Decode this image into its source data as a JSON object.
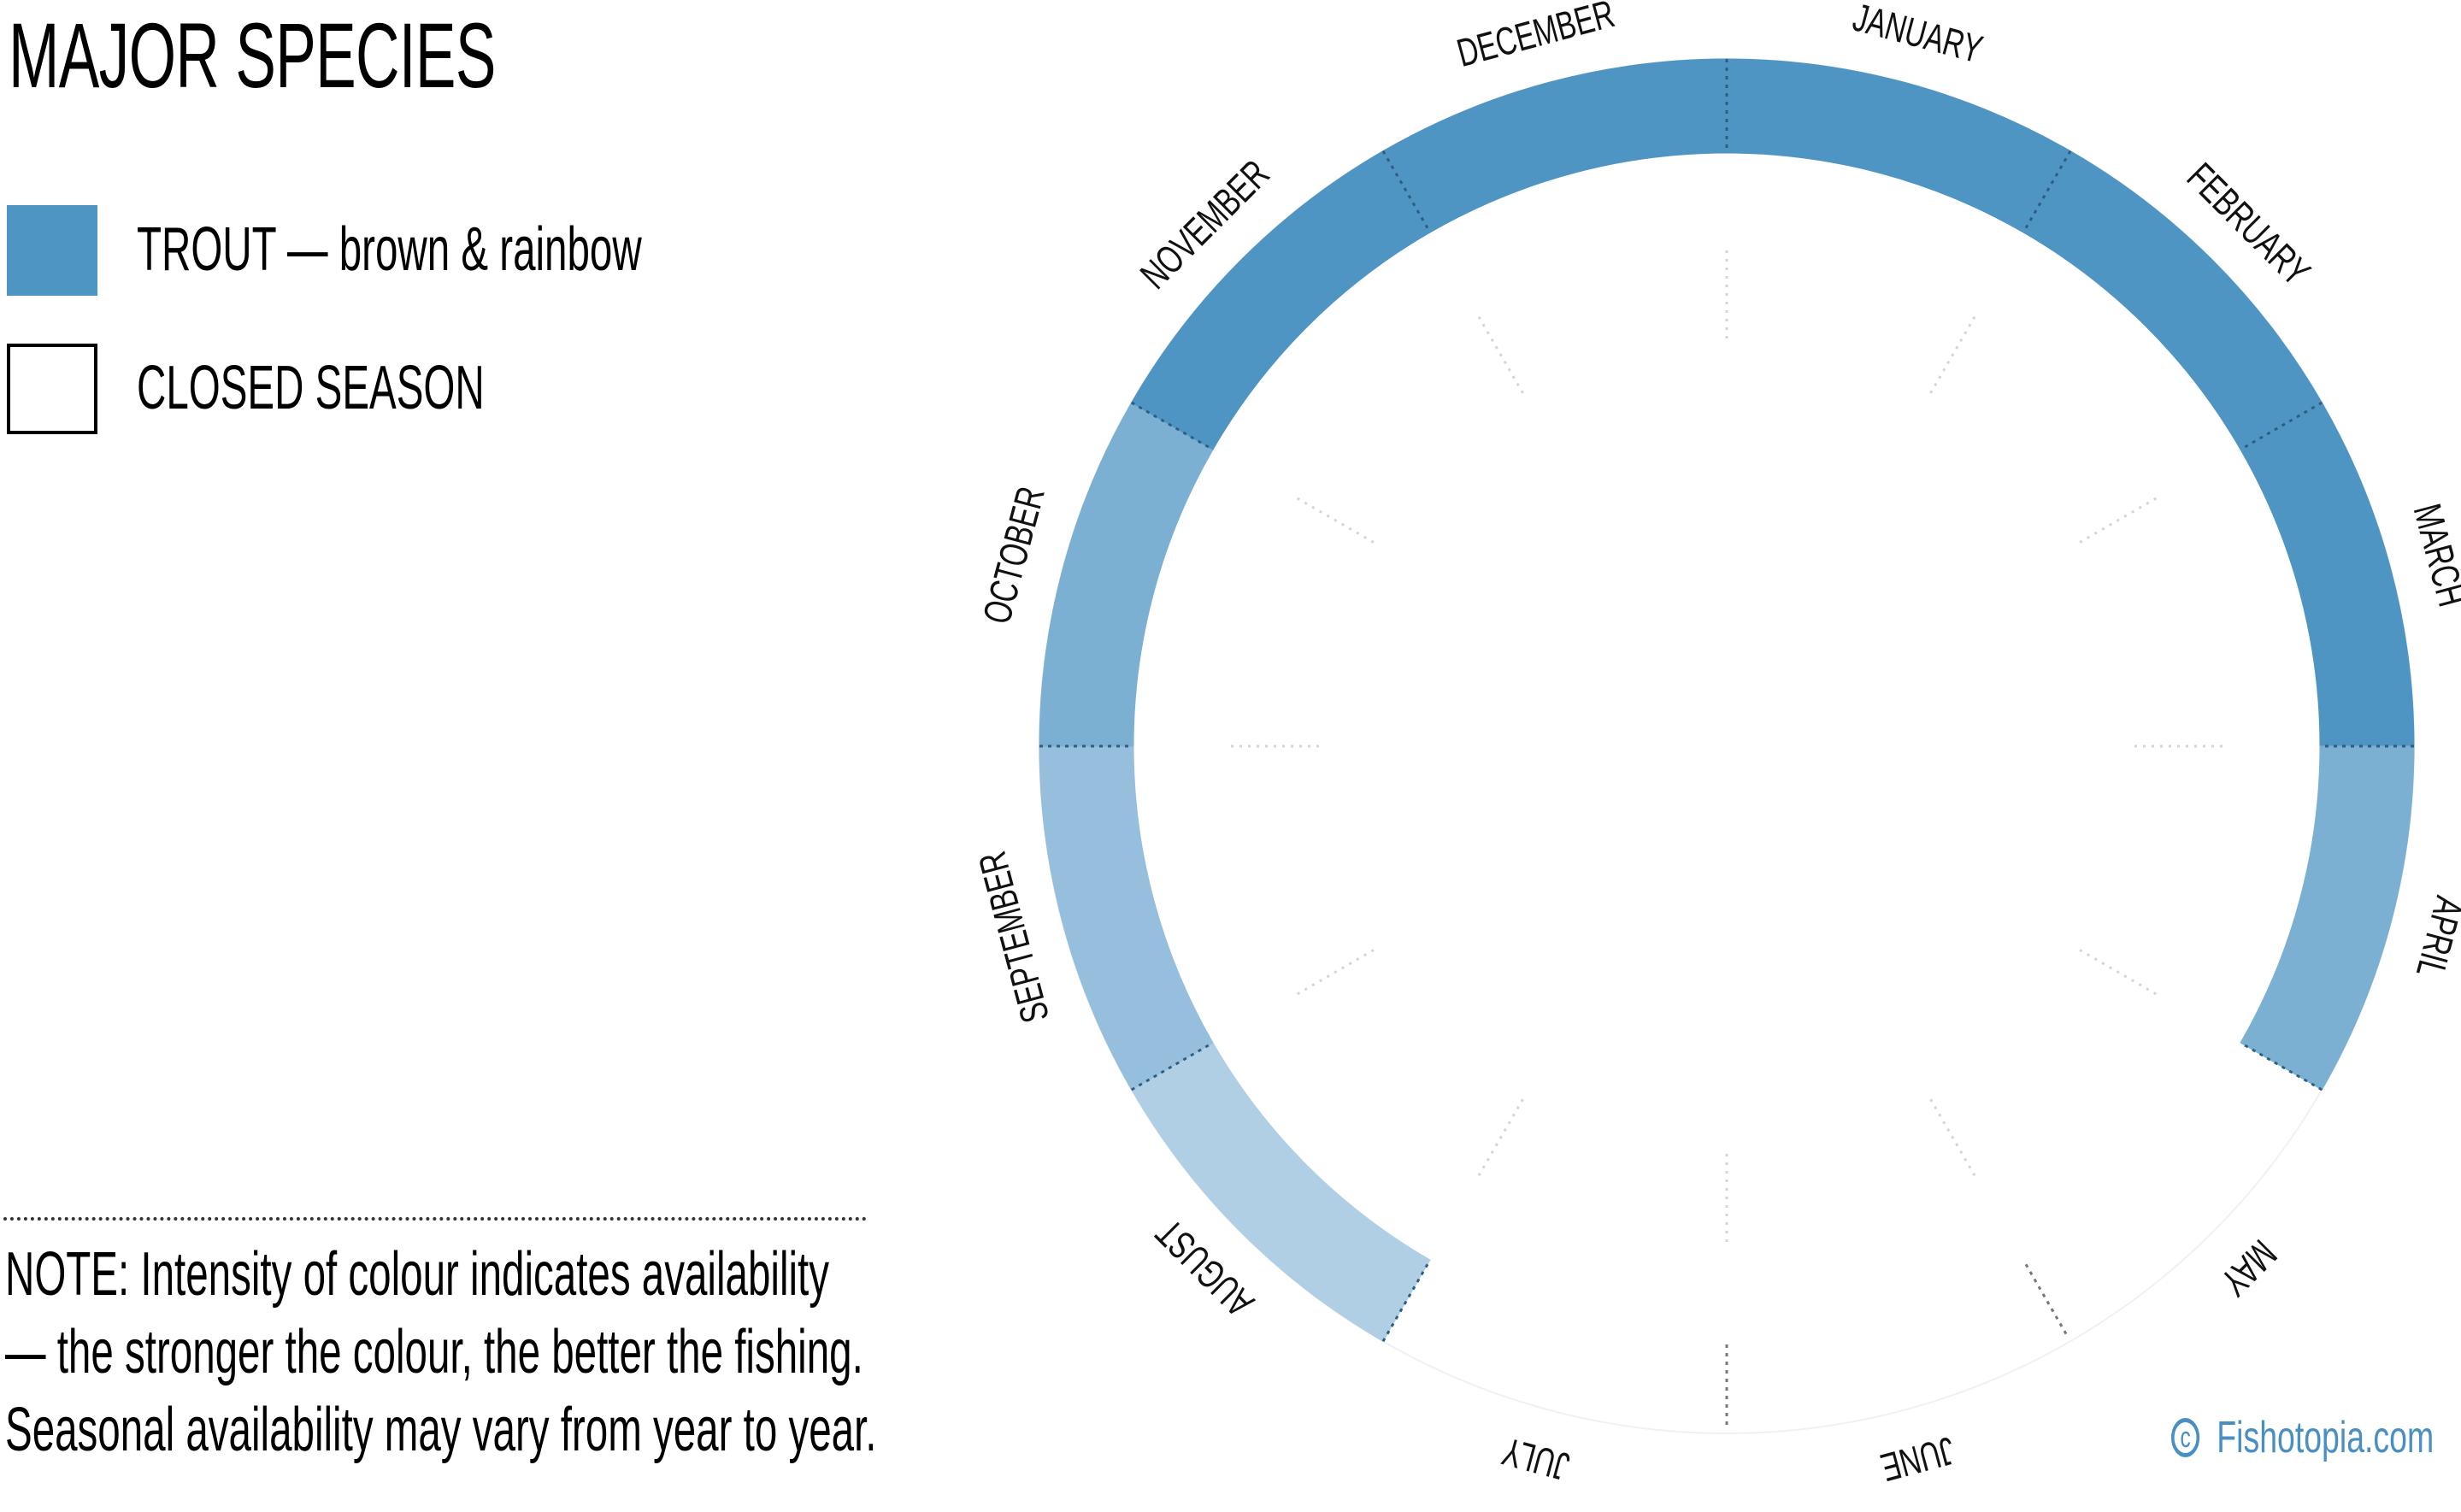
{
  "title": "MAJOR SPECIES",
  "legend": [
    {
      "label": "TROUT — brown & rainbow",
      "color": "#4f95c4",
      "type": "filled"
    },
    {
      "label": "CLOSED SEASON",
      "color": "#ffffff",
      "type": "empty"
    }
  ],
  "note": [
    "NOTE: Intensity of colour indicates availability",
    "— the stronger the colour, the better the fishing.",
    "Seasonal availability may vary from year to year."
  ],
  "credit": "Fishotopia.com",
  "chart_data": {
    "type": "radial",
    "series": [
      {
        "name": "TROUT — brown & rainbow",
        "color": "#4f95c4"
      }
    ],
    "months": [
      {
        "label": "JANUARY",
        "availability": 1.0
      },
      {
        "label": "FEBRUARY",
        "availability": 1.0
      },
      {
        "label": "MARCH",
        "availability": 1.0
      },
      {
        "label": "APRIL",
        "availability": 0.75
      },
      {
        "label": "MAY",
        "availability": 0
      },
      {
        "label": "JUNE",
        "availability": 0
      },
      {
        "label": "JULY",
        "availability": 0
      },
      {
        "label": "AUGUST",
        "availability": 0.45
      },
      {
        "label": "SEPTEMBER",
        "availability": 0.6
      },
      {
        "label": "OCTOBER",
        "availability": 0.75
      },
      {
        "label": "NOVEMBER",
        "availability": 1.0
      },
      {
        "label": "DECEMBER",
        "availability": 1.0
      }
    ]
  }
}
